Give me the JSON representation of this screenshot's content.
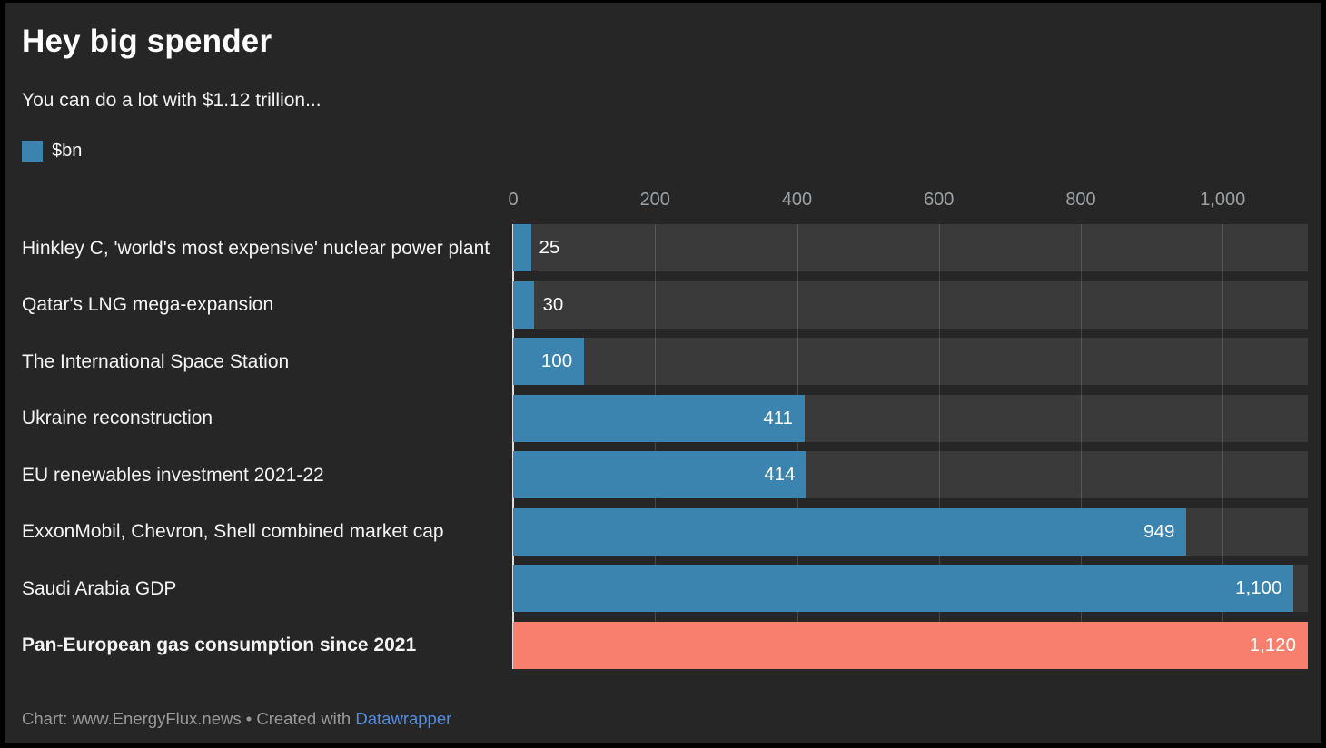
{
  "colors": {
    "frame": "#000000",
    "background": "#262626",
    "track": "#3a3a3a",
    "bar_blue": "#3b84af",
    "bar_salmon": "#f87f6e",
    "axis_text": "#9ba1a5",
    "label_text": "#f4f4f4",
    "footer_text": "#9a9a9a",
    "link": "#538de0"
  },
  "legend": {
    "label": "$bn",
    "color": "#3b84af"
  },
  "footer": {
    "prefix": "Chart: www.EnergyFlux.news • Created with ",
    "link_label": "Datawrapper"
  },
  "chart_data": {
    "type": "bar",
    "orientation": "horizontal",
    "title": "Hey big spender",
    "subtitle": "You can do a lot with $1.12 trillion...",
    "unit": "$bn",
    "xlim": [
      0,
      1120
    ],
    "x_ticks": [
      0,
      200,
      400,
      600,
      800,
      1000
    ],
    "x_tick_labels": [
      "0",
      "200",
      "400",
      "600",
      "800",
      "1,000"
    ],
    "grid": true,
    "legend_position": "top-left",
    "categories": [
      "Hinkley C, 'world's most expensive' nuclear power plant",
      "Qatar's LNG mega-expansion",
      "The International Space Station",
      "Ukraine reconstruction",
      "EU renewables investment 2021-22",
      "ExxonMobil, Chevron, Shell combined market cap",
      "Saudi Arabia GDP",
      "Pan-European gas consumption since 2021"
    ],
    "values": [
      25,
      30,
      100,
      411,
      414,
      949,
      1100,
      1120
    ],
    "value_labels": [
      "25",
      "30",
      "100",
      "411",
      "414",
      "949",
      "1,100",
      "1,120"
    ],
    "highlight_index": 7,
    "bar_color": "#3b84af",
    "highlight_color": "#f87f6e",
    "inside_label_threshold": 100
  }
}
